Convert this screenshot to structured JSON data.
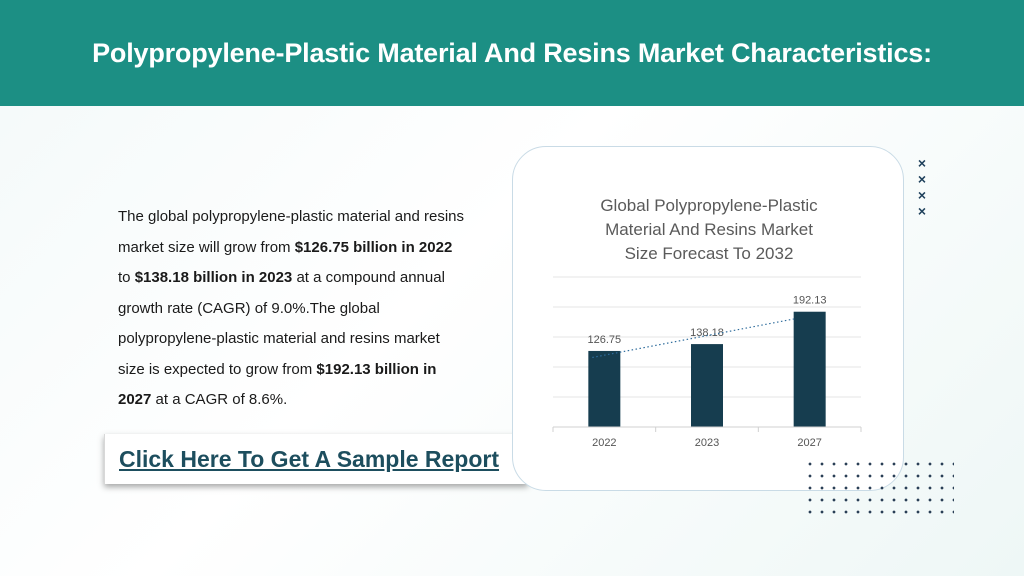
{
  "header": {
    "title": "Polypropylene-Plastic Material And Resins Market Characteristics:"
  },
  "paragraph": {
    "p1": "The global polypropylene-plastic material and resins market size will grow from ",
    "b1": "$126.75 billion in 2022",
    "p2": " to ",
    "b2": "$138.18 billion in 2023",
    "p3": " at a compound annual growth rate (CAGR) of 9.0%.The global polypropylene-plastic material and resins market size is expected to grow from ",
    "b3": "$192.13 billion in 2027",
    "p4": " at a CAGR of 8.6%."
  },
  "cta": {
    "label": "Click Here To Get A Sample Report"
  },
  "decor": {
    "x_mark": "×"
  },
  "colors": {
    "header_bg": "#1c8f84",
    "bar": "#163d4f",
    "trendline": "#2e6c9c",
    "cta_text": "#1d4e5e"
  },
  "chart_data": {
    "type": "bar",
    "title_lines": [
      "Global Polypropylene-Plastic",
      "Material And Resins Market",
      "Size Forecast To 2032"
    ],
    "categories": [
      "2022",
      "2023",
      "2027"
    ],
    "values": [
      126.75,
      138.18,
      192.13
    ],
    "value_labels": [
      "126.75",
      "138.18",
      "192.13"
    ],
    "ylim": [
      0,
      250
    ],
    "grid": true,
    "trendline": "linear dotted",
    "legend": "none"
  }
}
